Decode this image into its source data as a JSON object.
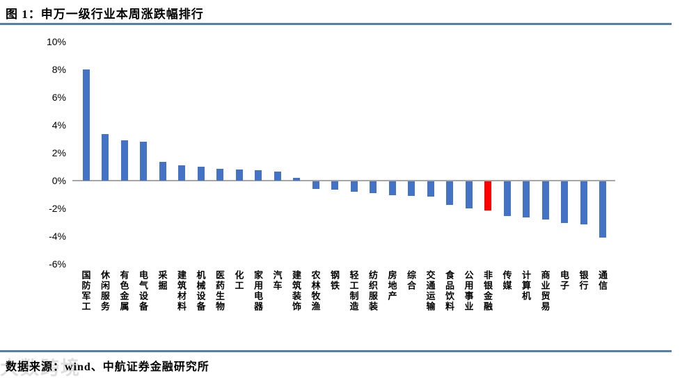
{
  "header": {
    "title": "图 1：申万一级行业本周涨跌幅排行"
  },
  "footer": {
    "source": "数据来源：wind、中航证券金融研究所"
  },
  "watermark": {
    "text": "大数跨境"
  },
  "colors": {
    "bar": "#4472C4",
    "highlight": "#FF0000",
    "axis_line": "#A6A6A6",
    "rule": "#5380A8",
    "text": "#000000"
  },
  "chart_data": {
    "type": "bar",
    "title": "图 1：申万一级行业本周涨跌幅排行",
    "xlabel": "",
    "ylabel": "",
    "ylim": [
      -6,
      10
    ],
    "grid": false,
    "legend": false,
    "unit": "%",
    "y_ticks": [
      {
        "label": "10%",
        "value": 10
      },
      {
        "label": "8%",
        "value": 8
      },
      {
        "label": "6%",
        "value": 6
      },
      {
        "label": "4%",
        "value": 4
      },
      {
        "label": "2%",
        "value": 2
      },
      {
        "label": "0%",
        "value": 0
      },
      {
        "label": "-2%",
        "value": -2
      },
      {
        "label": "-4%",
        "value": -4
      },
      {
        "label": "-6%",
        "value": -6
      }
    ],
    "categories": [
      "国防军工",
      "休闲服务",
      "有色金属",
      "电气设备",
      "采掘",
      "建筑材料",
      "机械设备",
      "医药生物",
      "化工",
      "家用电器",
      "汽车",
      "建筑装饰",
      "农林牧渔",
      "钢铁",
      "轻工制造",
      "纺织服装",
      "房地产",
      "综合",
      "交通运输",
      "食品饮料",
      "公用事业",
      "非银金融",
      "传媒",
      "计算机",
      "商业贸易",
      "电子",
      "银行",
      "通信"
    ],
    "values": [
      8.0,
      3.35,
      2.9,
      2.8,
      1.35,
      1.1,
      1.0,
      0.85,
      0.8,
      0.75,
      0.65,
      0.2,
      -0.55,
      -0.6,
      -0.75,
      -0.85,
      -1.0,
      -1.05,
      -1.1,
      -1.7,
      -1.95,
      -2.1,
      -2.5,
      -2.6,
      -2.75,
      -3.0,
      -3.1,
      -4.05
    ],
    "highlight_index": 21,
    "highlight_category": "非银金融"
  }
}
